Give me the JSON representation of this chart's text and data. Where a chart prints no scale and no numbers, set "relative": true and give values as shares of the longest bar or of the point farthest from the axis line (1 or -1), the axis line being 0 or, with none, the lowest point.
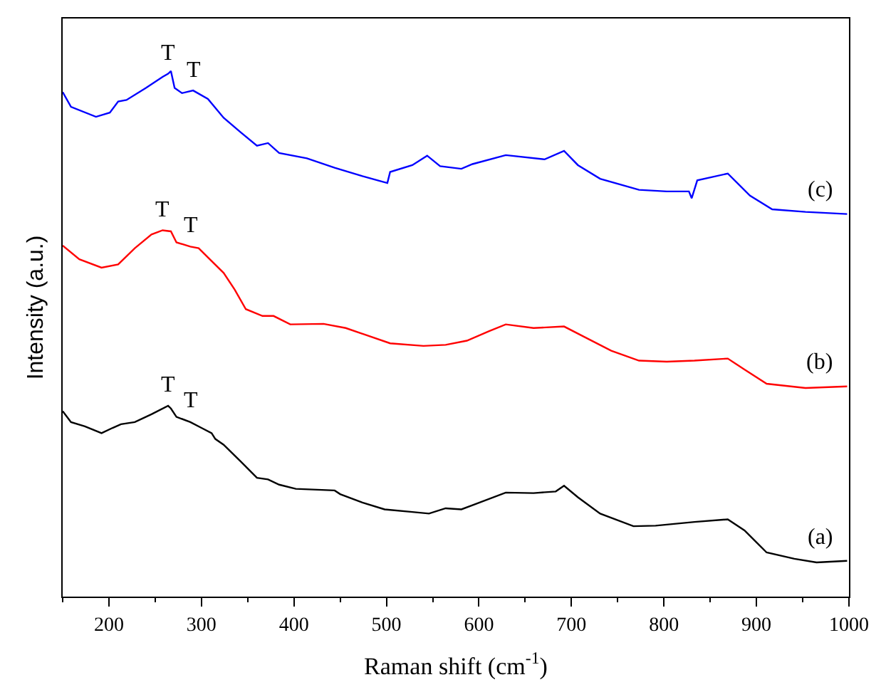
{
  "chart_data": {
    "type": "line",
    "relative": true,
    "xlabel": "Raman shift (cm$^{-1}$)",
    "ylabel": "Intensity (a.u.)",
    "xlim": [
      150,
      1000
    ],
    "xticks": [
      200,
      300,
      400,
      500,
      600,
      700,
      800,
      900,
      1000
    ],
    "tick_labels": "x",
    "legend": false,
    "marker": "none",
    "line_style": "solid",
    "series": [
      {
        "name": "(a)",
        "color": "#000000",
        "x": [
          150,
          159,
          174,
          192,
          204,
          213,
          228,
          246,
          264,
          267,
          273,
          288,
          300,
          311,
          315,
          324,
          342,
          360,
          372,
          384,
          402,
          444,
          450,
          474,
          498,
          528,
          546,
          564,
          581,
          593,
          629,
          659,
          683,
          692,
          707,
          731,
          767,
          791,
          833,
          869,
          887,
          911,
          941,
          965,
          998
        ],
        "values": [
          0.353,
          0.332,
          0.324,
          0.311,
          0.321,
          0.328,
          0.332,
          0.347,
          0.363,
          0.358,
          0.342,
          0.332,
          0.321,
          0.311,
          0.3,
          0.289,
          0.258,
          0.226,
          0.223,
          0.213,
          0.205,
          0.202,
          0.195,
          0.179,
          0.166,
          0.161,
          0.158,
          0.168,
          0.166,
          0.174,
          0.198,
          0.197,
          0.2,
          0.211,
          0.189,
          0.158,
          0.134,
          0.135,
          0.142,
          0.147,
          0.126,
          0.084,
          0.072,
          0.065,
          0.068
        ]
      },
      {
        "name": "(b)",
        "color": "#ff0000",
        "x": [
          150,
          168,
          192,
          210,
          228,
          246,
          258,
          267,
          273,
          288,
          297,
          309,
          324,
          336,
          348,
          366,
          378,
          396,
          432,
          456,
          504,
          540,
          564,
          587,
          611,
          629,
          659,
          692,
          713,
          743,
          773,
          803,
          833,
          869,
          887,
          911,
          953,
          998
        ],
        "values": [
          0.668,
          0.642,
          0.626,
          0.632,
          0.663,
          0.689,
          0.697,
          0.695,
          0.674,
          0.666,
          0.663,
          0.642,
          0.616,
          0.584,
          0.547,
          0.534,
          0.534,
          0.518,
          0.519,
          0.511,
          0.482,
          0.477,
          0.479,
          0.487,
          0.505,
          0.518,
          0.511,
          0.514,
          0.495,
          0.468,
          0.449,
          0.447,
          0.449,
          0.453,
          0.432,
          0.405,
          0.397,
          0.4
        ]
      },
      {
        "name": "(c)",
        "color": "#0000ff",
        "x": [
          150,
          159,
          186,
          201,
          210,
          219,
          240,
          258,
          264,
          267,
          271,
          279,
          291,
          307,
          324,
          342,
          360,
          372,
          384,
          414,
          444,
          474,
          501,
          504,
          528,
          544,
          558,
          581,
          593,
          629,
          671,
          692,
          707,
          731,
          773,
          803,
          827,
          830,
          836,
          869,
          893,
          917,
          953,
          998
        ],
        "values": [
          0.96,
          0.932,
          0.913,
          0.921,
          0.942,
          0.945,
          0.968,
          0.989,
          0.995,
          1.0,
          0.968,
          0.958,
          0.963,
          0.947,
          0.911,
          0.884,
          0.858,
          0.863,
          0.844,
          0.834,
          0.816,
          0.8,
          0.787,
          0.808,
          0.821,
          0.839,
          0.819,
          0.814,
          0.823,
          0.84,
          0.832,
          0.848,
          0.821,
          0.795,
          0.774,
          0.771,
          0.771,
          0.758,
          0.792,
          0.805,
          0.763,
          0.737,
          0.732,
          0.728
        ]
      }
    ],
    "annotations": [
      {
        "text": "T",
        "x": 264,
        "y": 0.995
      },
      {
        "text": "T",
        "x": 291,
        "y": 0.963
      },
      {
        "text": "T",
        "x": 258,
        "y": 0.697
      },
      {
        "text": "T",
        "x": 288,
        "y": 0.666
      },
      {
        "text": "T",
        "x": 264,
        "y": 0.363
      },
      {
        "text": "T",
        "x": 288,
        "y": 0.332
      }
    ]
  }
}
